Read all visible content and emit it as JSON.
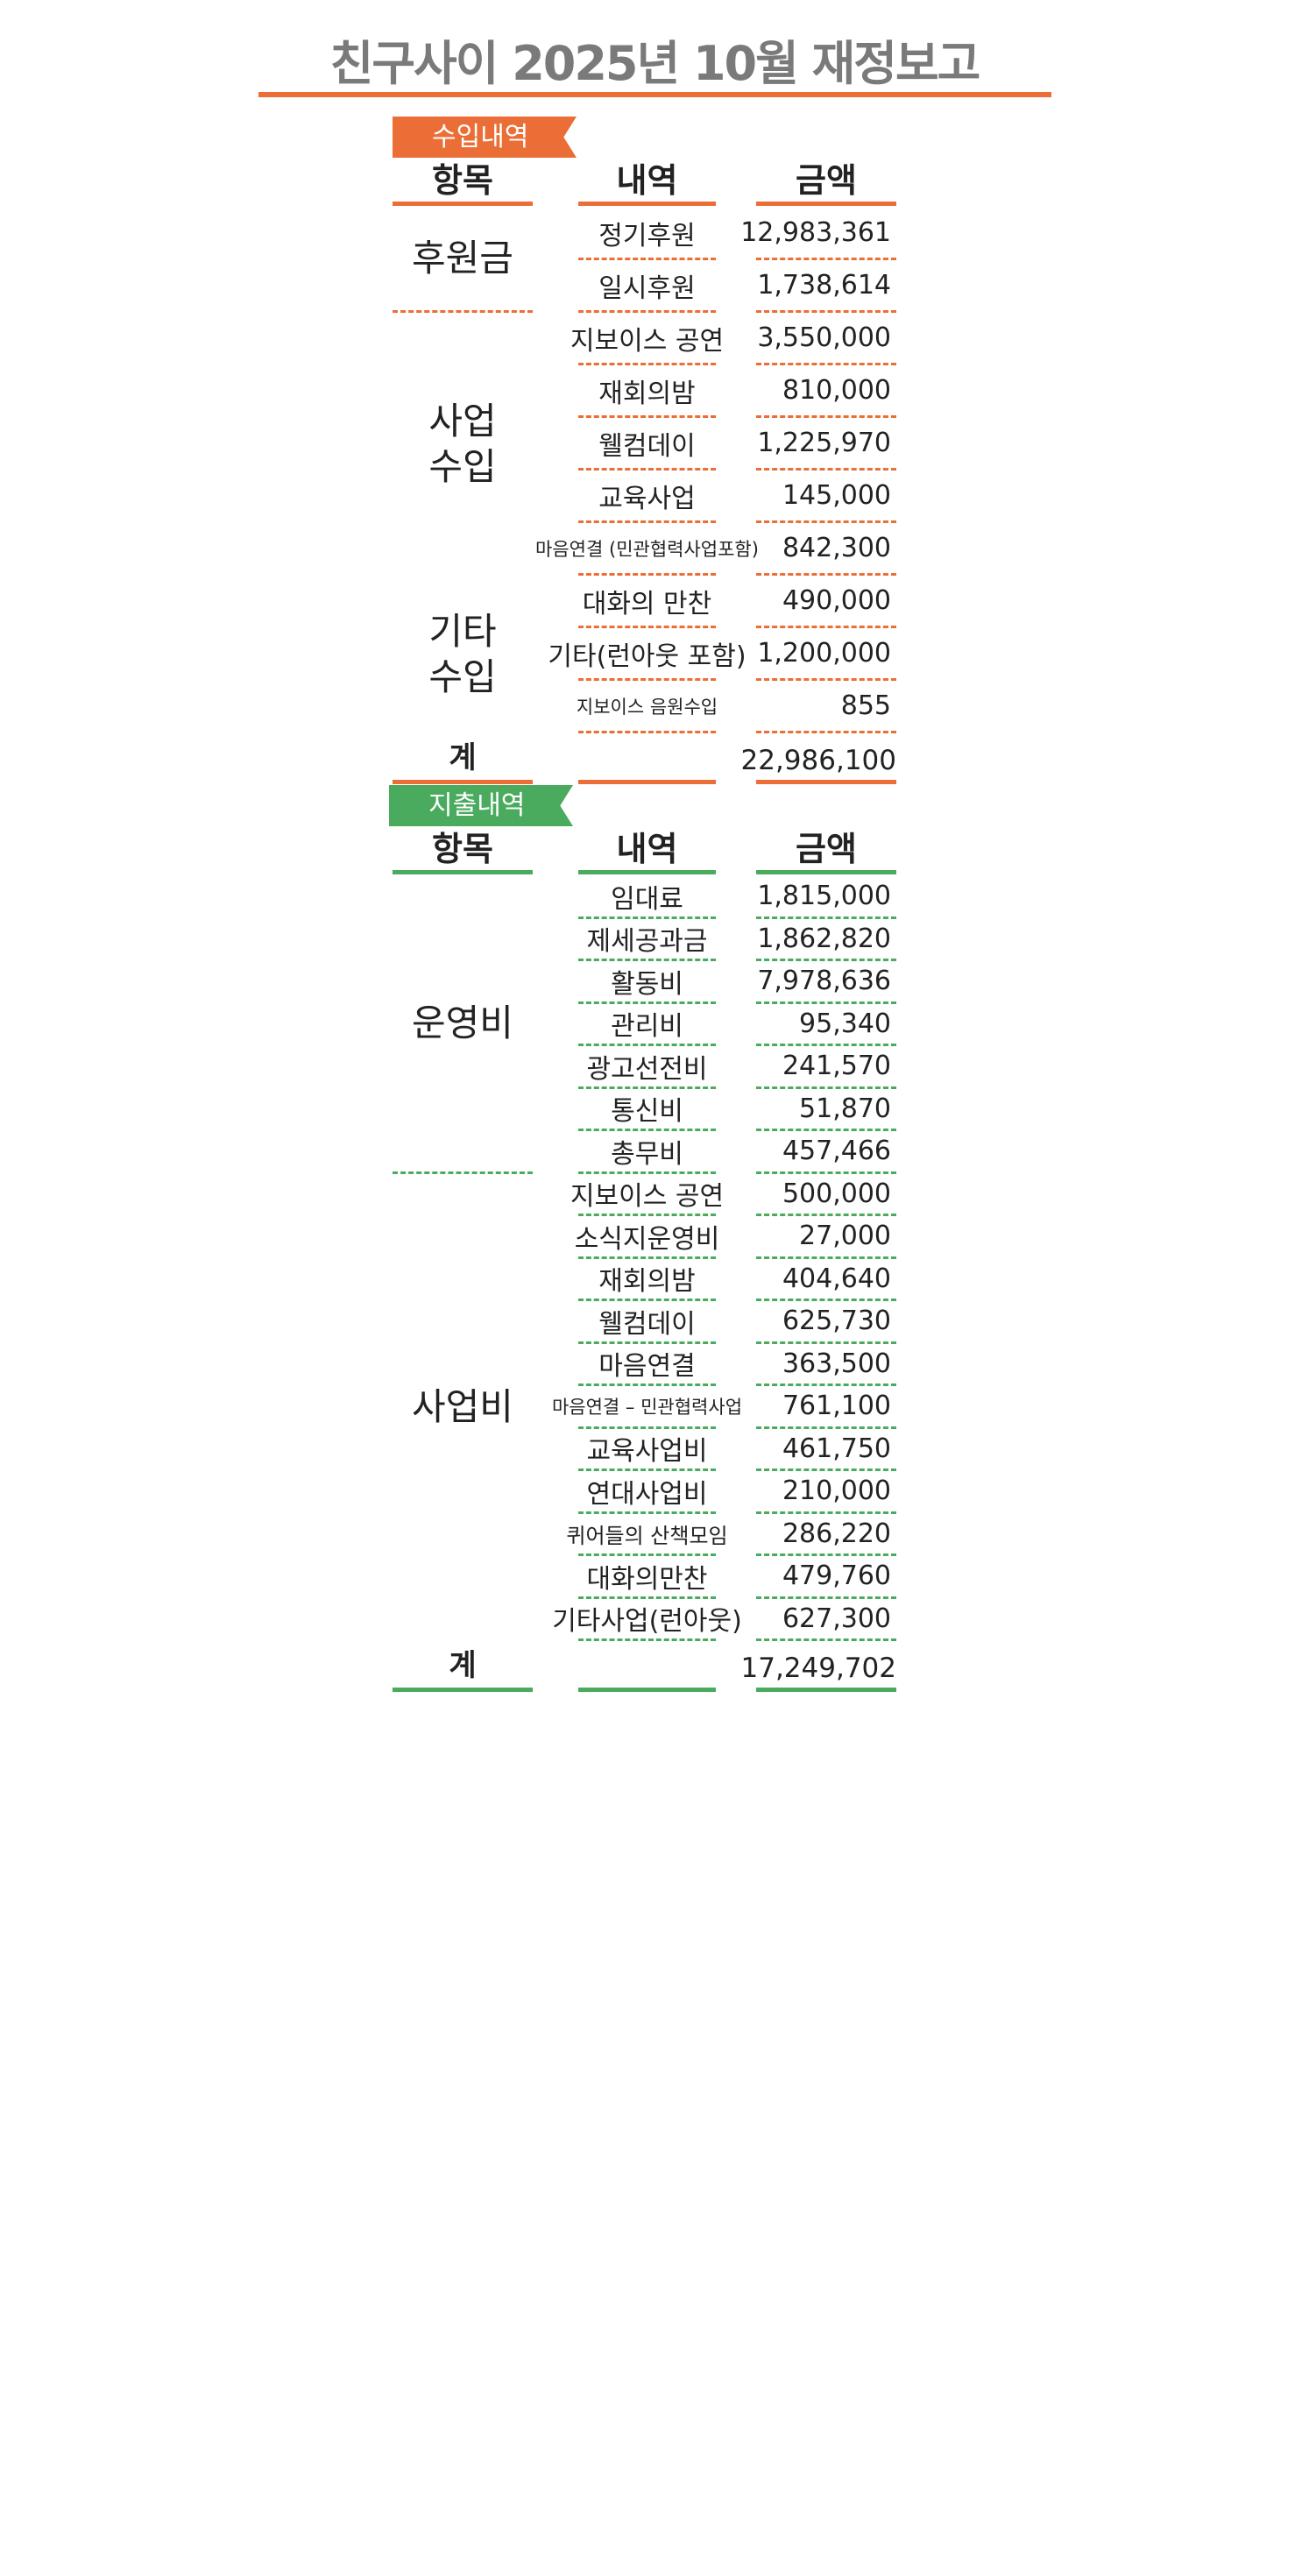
{
  "title": "친구사이 2025년 10월 재정보고",
  "colors": {
    "income": "#eb6e37",
    "expense": "#4aab5e",
    "title": "#7a7a7a"
  },
  "income": {
    "badge": "수입내역",
    "headers": {
      "item": "항목",
      "detail": "내역",
      "amount": "금액"
    },
    "groups": [
      {
        "category": "후원금",
        "rows": [
          {
            "detail": "정기후원",
            "amount": "12,983,361"
          },
          {
            "detail": "일시후원",
            "amount": "1,738,614"
          }
        ]
      },
      {
        "category": "사업\n수입",
        "rows": [
          {
            "detail": "지보이스 공연",
            "amount": "3,550,000"
          },
          {
            "detail": "재회의밤",
            "amount": "810,000"
          },
          {
            "detail": "웰컴데이",
            "amount": "1,225,970"
          },
          {
            "detail": "교육사업",
            "amount": "145,000"
          },
          {
            "detail": "마음연결 (민관협력사업포함)",
            "amount": "842,300"
          }
        ]
      },
      {
        "category": "기타\n수입",
        "rows": [
          {
            "detail": "대화의 만찬",
            "amount": "490,000"
          },
          {
            "detail": "기타(런아웃 포함)",
            "amount": "1,200,000"
          },
          {
            "detail": "지보이스 음원수입",
            "amount": "855"
          }
        ]
      }
    ],
    "total": {
      "label": "계",
      "amount": "22,986,100"
    }
  },
  "expense": {
    "badge": "지출내역",
    "headers": {
      "item": "항목",
      "detail": "내역",
      "amount": "금액"
    },
    "groups": [
      {
        "category": "운영비",
        "rows": [
          {
            "detail": "임대료",
            "amount": "1,815,000"
          },
          {
            "detail": "제세공과금",
            "amount": "1,862,820"
          },
          {
            "detail": "활동비",
            "amount": "7,978,636"
          },
          {
            "detail": "관리비",
            "amount": "95,340"
          },
          {
            "detail": "광고선전비",
            "amount": "241,570"
          },
          {
            "detail": "통신비",
            "amount": "51,870"
          },
          {
            "detail": "총무비",
            "amount": "457,466"
          }
        ]
      },
      {
        "category": "사업비",
        "rows": [
          {
            "detail": "지보이스 공연",
            "amount": "500,000"
          },
          {
            "detail": "소식지운영비",
            "amount": "27,000"
          },
          {
            "detail": "재회의밤",
            "amount": "404,640"
          },
          {
            "detail": "웰컴데이",
            "amount": "625,730"
          },
          {
            "detail": "마음연결",
            "amount": "363,500"
          },
          {
            "detail": "마음연결 – 민관협력사업",
            "amount": "761,100"
          },
          {
            "detail": "교육사업비",
            "amount": "461,750"
          },
          {
            "detail": "연대사업비",
            "amount": "210,000"
          },
          {
            "detail": "퀴어들의 산책모임",
            "amount": "286,220"
          },
          {
            "detail": "대화의만찬",
            "amount": "479,760"
          },
          {
            "detail": "기타사업(런아웃)",
            "amount": "627,300"
          }
        ]
      }
    ],
    "total": {
      "label": "계",
      "amount": "17,249,702"
    }
  }
}
